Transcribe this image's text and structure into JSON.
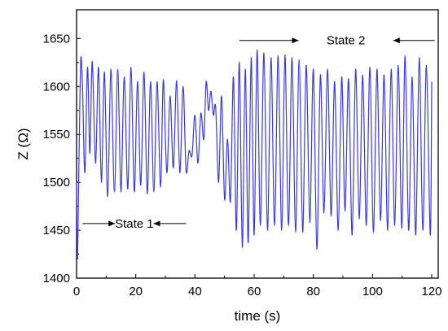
{
  "chart_data": {
    "type": "line",
    "title": "",
    "xlabel": "time (s)",
    "ylabel": "Z (Ω)",
    "xlim": [
      0,
      120
    ],
    "ylim": [
      1400,
      1680
    ],
    "xticks": [
      0,
      20,
      40,
      60,
      80,
      100,
      120
    ],
    "yticks": [
      1400,
      1450,
      1500,
      1550,
      1600,
      1650
    ],
    "grid": false,
    "legend": "none",
    "line_color": "#3a3ad6",
    "series": [
      {
        "x": [
          0,
          0.3,
          0.8,
          1.4,
          2.0,
          2.8,
          3.7,
          4.5,
          5.3,
          6.4,
          7.4,
          8.4,
          9.4,
          10.5,
          11.6,
          12.8,
          13.9,
          15.0,
          16.1,
          17.3,
          18.4,
          19.5,
          20.6,
          21.7,
          22.8,
          23.9,
          25.0,
          26.1,
          27.2,
          28.4,
          29.3,
          30.5,
          31.6,
          32.7,
          33.8,
          34.9,
          36.0,
          37.0,
          38.0,
          39.0,
          40.0,
          41.0,
          42.0,
          43.0,
          43.8,
          44.6,
          45.4,
          46.2,
          47.0,
          48.0,
          49.0,
          50.0,
          51.0,
          52.0,
          53.0,
          54.0,
          55.0,
          56.0,
          57.0,
          58.0,
          59.0,
          60.0,
          61.0,
          62.1,
          63.3,
          64.5,
          65.7,
          66.9,
          68.1,
          69.3,
          70.4,
          71.6,
          72.8,
          74.0,
          75.2,
          76.4,
          77.6,
          78.8,
          80.0,
          81.2,
          82.4,
          83.6,
          84.8,
          86.0,
          87.2,
          88.4,
          89.6,
          90.7,
          91.9,
          93.1,
          94.3,
          95.5,
          96.7,
          97.9,
          99.1,
          100.3,
          101.5,
          102.7,
          103.9,
          105.1,
          106.3,
          107.5,
          108.7,
          109.9,
          111.0,
          112.2,
          113.4,
          114.6,
          115.8,
          117.0,
          118.2,
          119.5,
          120.0
        ],
        "y": [
          1500,
          1420,
          1520,
          1627,
          1600,
          1510,
          1620,
          1530,
          1626,
          1520,
          1620,
          1500,
          1615,
          1485,
          1618,
          1490,
          1618,
          1490,
          1610,
          1493,
          1620,
          1490,
          1605,
          1497,
          1615,
          1488,
          1605,
          1490,
          1605,
          1495,
          1607,
          1510,
          1590,
          1515,
          1606,
          1510,
          1600,
          1512,
          1533,
          1528,
          1570,
          1520,
          1572,
          1545,
          1605,
          1575,
          1595,
          1570,
          1578,
          1500,
          1590,
          1482,
          1545,
          1480,
          1610,
          1450,
          1625,
          1432,
          1618,
          1437,
          1630,
          1445,
          1638,
          1455,
          1635,
          1450,
          1630,
          1455,
          1632,
          1450,
          1633,
          1455,
          1630,
          1448,
          1628,
          1448,
          1622,
          1458,
          1618,
          1430,
          1612,
          1468,
          1618,
          1465,
          1605,
          1450,
          1610,
          1470,
          1608,
          1445,
          1618,
          1462,
          1612,
          1455,
          1620,
          1448,
          1618,
          1460,
          1612,
          1450,
          1618,
          1455,
          1622,
          1452,
          1632,
          1450,
          1610,
          1445,
          1630,
          1450,
          1622,
          1445,
          1605
        ]
      }
    ],
    "annotations": [
      {
        "label": "State 1",
        "y": 1457,
        "arrow_left": [
          2,
          13
        ],
        "arrow_right": [
          37,
          26
        ]
      },
      {
        "label": "State 2",
        "y": 1648,
        "arrow_left": [
          55,
          75
        ],
        "arrow_right": [
          121,
          107
        ]
      }
    ]
  }
}
